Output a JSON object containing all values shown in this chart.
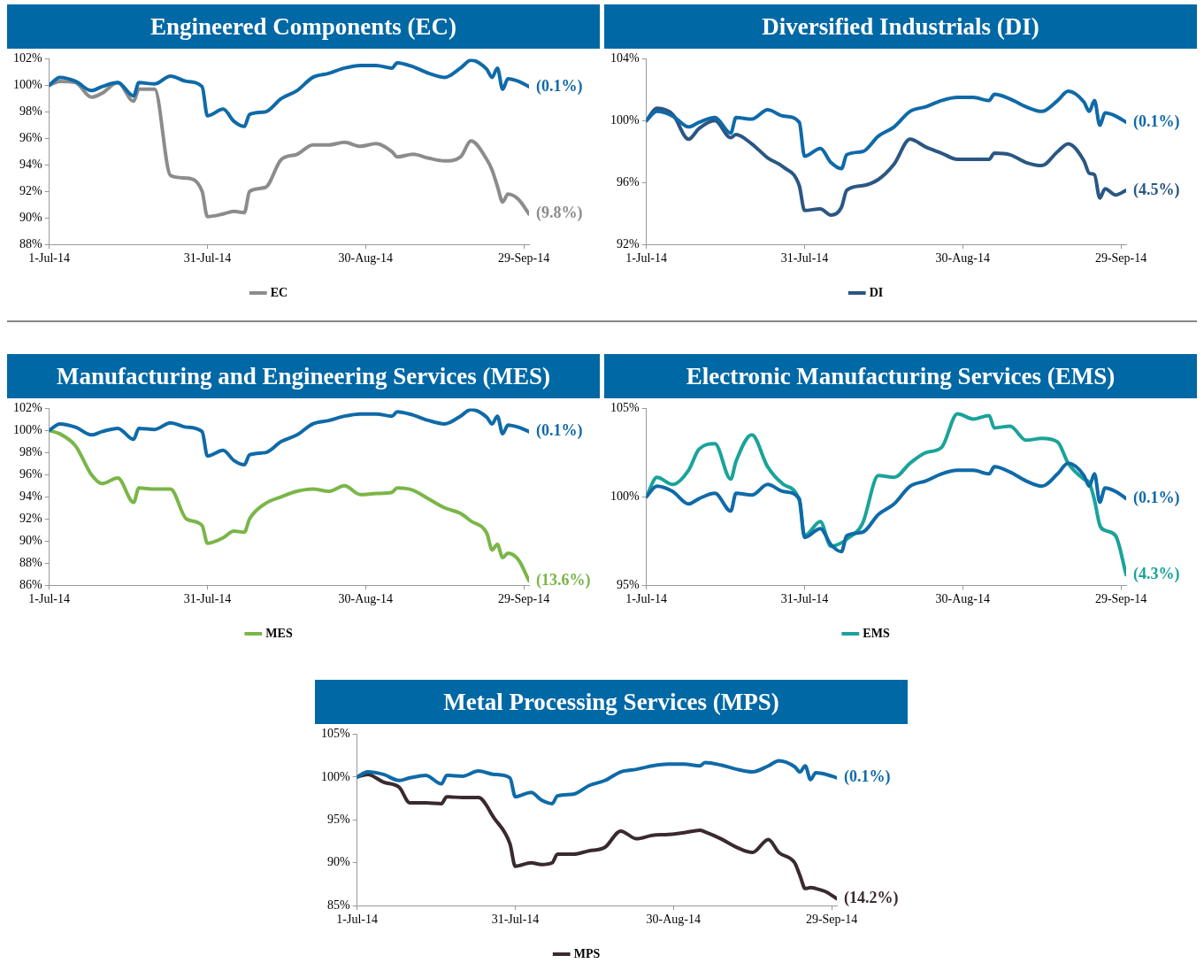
{
  "chart_data": [
    {
      "type": "line",
      "title": "Engineered Components (EC)",
      "legend": "bottom",
      "grid": false,
      "x": [
        "2014-07-01",
        "2014-07-03",
        "2014-07-06",
        "2014-07-09",
        "2014-07-11",
        "2014-07-14",
        "2014-07-17",
        "2014-07-18",
        "2014-07-21",
        "2014-07-24",
        "2014-07-27",
        "2014-07-30",
        "2014-07-31",
        "2014-08-03",
        "2014-08-05",
        "2014-08-07",
        "2014-08-08",
        "2014-08-11",
        "2014-08-14",
        "2014-08-17",
        "2014-08-20",
        "2014-08-23",
        "2014-08-26",
        "2014-08-29",
        "2014-09-01",
        "2014-09-04",
        "2014-09-05",
        "2014-09-08",
        "2014-09-11",
        "2014-09-14",
        "2014-09-17",
        "2014-09-19",
        "2014-09-22",
        "2014-09-23",
        "2014-09-24",
        "2014-09-25",
        "2014-09-26",
        "2014-09-28",
        "2014-09-30"
      ],
      "series": [
        {
          "color": "#0f6aa8",
          "values": [
            100,
            100.6,
            100.3,
            99.6,
            99.9,
            100.2,
            99.2,
            100.2,
            100.1,
            100.7,
            100.3,
            99.9,
            97.7,
            98.2,
            97.3,
            96.9,
            97.8,
            98.0,
            99.0,
            99.6,
            100.6,
            100.9,
            101.3,
            101.5,
            101.5,
            101.3,
            101.7,
            101.4,
            100.9,
            100.6,
            101.3,
            101.9,
            101.2,
            100.6,
            101.3,
            99.7,
            100.5,
            100.3,
            99.9
          ]
        },
        {
          "name": "EC",
          "color": "#8c8c8c",
          "values": [
            100,
            100.3,
            100.2,
            99.1,
            99.4,
            100.2,
            98.8,
            99.7,
            99.7,
            93.2,
            93.0,
            92.0,
            90.1,
            90.3,
            90.5,
            90.4,
            92.0,
            92.3,
            94.4,
            94.8,
            95.5,
            95.5,
            95.7,
            95.4,
            95.6,
            95.0,
            94.6,
            94.8,
            94.5,
            94.3,
            94.6,
            95.8,
            94.4,
            93.6,
            92.4,
            91.2,
            91.8,
            91.4,
            90.3
          ]
        }
      ],
      "xlim": [
        "2014-07-01",
        "2014-09-30"
      ],
      "xticks": [
        {
          "value": "2014-07-01",
          "label": "1-Jul-14"
        },
        {
          "value": "2014-07-31",
          "label": "31-Jul-14"
        },
        {
          "value": "2014-08-30",
          "label": "30-Aug-14"
        },
        {
          "value": "2014-09-29",
          "label": "29-Sep-14"
        }
      ],
      "ylim": [
        88,
        102
      ],
      "yticks": [
        {
          "value": 88,
          "label": "88%"
        },
        {
          "value": 90,
          "label": "90%"
        },
        {
          "value": 92,
          "label": "92%"
        },
        {
          "value": 94,
          "label": "94%"
        },
        {
          "value": 96,
          "label": "96%"
        },
        {
          "value": 98,
          "label": "98%"
        },
        {
          "value": 100,
          "label": "100%"
        },
        {
          "value": 102,
          "label": "102%"
        }
      ],
      "annotations": [
        {
          "text": "(0.1%)",
          "x": "2014-09-30",
          "y": 99.9
        },
        {
          "text": "(9.8%)",
          "x": "2014-09-30",
          "y": 90.3
        }
      ]
    },
    {
      "type": "line",
      "title": "Diversified Industrials (DI)",
      "legend": "bottom",
      "grid": false,
      "x": [
        "2014-07-01",
        "2014-07-03",
        "2014-07-06",
        "2014-07-09",
        "2014-07-11",
        "2014-07-14",
        "2014-07-17",
        "2014-07-18",
        "2014-07-21",
        "2014-07-24",
        "2014-07-27",
        "2014-07-30",
        "2014-07-31",
        "2014-08-03",
        "2014-08-05",
        "2014-08-07",
        "2014-08-08",
        "2014-08-11",
        "2014-08-14",
        "2014-08-17",
        "2014-08-20",
        "2014-08-23",
        "2014-08-26",
        "2014-08-29",
        "2014-09-01",
        "2014-09-04",
        "2014-09-05",
        "2014-09-08",
        "2014-09-11",
        "2014-09-14",
        "2014-09-17",
        "2014-09-19",
        "2014-09-22",
        "2014-09-23",
        "2014-09-24",
        "2014-09-25",
        "2014-09-26",
        "2014-09-28",
        "2014-09-30"
      ],
      "series": [
        {
          "color": "#0f6aa8",
          "values": [
            100,
            100.6,
            100.3,
            99.6,
            99.9,
            100.2,
            99.2,
            100.2,
            100.1,
            100.7,
            100.3,
            99.9,
            97.7,
            98.2,
            97.3,
            96.9,
            97.8,
            98.0,
            99.0,
            99.6,
            100.6,
            100.9,
            101.3,
            101.5,
            101.5,
            101.3,
            101.7,
            101.4,
            100.9,
            100.6,
            101.3,
            101.9,
            101.2,
            100.6,
            101.3,
            99.7,
            100.5,
            100.3,
            99.9
          ]
        },
        {
          "name": "DI",
          "color": "#2a5783",
          "values": [
            100,
            100.8,
            100.4,
            98.8,
            99.5,
            100.0,
            98.9,
            99.1,
            98.5,
            97.6,
            97.0,
            95.8,
            94.2,
            94.3,
            93.9,
            94.4,
            95.5,
            95.8,
            96.2,
            97.2,
            98.8,
            98.3,
            97.9,
            97.5,
            97.5,
            97.5,
            97.9,
            97.8,
            97.3,
            97.1,
            98.0,
            98.5,
            97.4,
            96.6,
            96.5,
            95.0,
            95.6,
            95.2,
            95.5
          ]
        }
      ],
      "xlim": [
        "2014-07-01",
        "2014-09-30"
      ],
      "xticks": [
        {
          "value": "2014-07-01",
          "label": "1-Jul-14"
        },
        {
          "value": "2014-07-31",
          "label": "31-Jul-14"
        },
        {
          "value": "2014-08-30",
          "label": "30-Aug-14"
        },
        {
          "value": "2014-09-29",
          "label": "29-Sep-14"
        }
      ],
      "ylim": [
        92,
        104
      ],
      "yticks": [
        {
          "value": 92,
          "label": "92%"
        },
        {
          "value": 96,
          "label": "96%"
        },
        {
          "value": 100,
          "label": "100%"
        },
        {
          "value": 104,
          "label": "104%"
        }
      ],
      "annotations": [
        {
          "text": "(0.1%)",
          "x": "2014-09-30",
          "y": 99.9
        },
        {
          "text": "(4.5%)",
          "x": "2014-09-30",
          "y": 95.5
        }
      ]
    },
    {
      "type": "line",
      "title": "Manufacturing and Engineering Services (MES)",
      "legend": "bottom",
      "grid": false,
      "x": [
        "2014-07-01",
        "2014-07-03",
        "2014-07-06",
        "2014-07-09",
        "2014-07-11",
        "2014-07-14",
        "2014-07-17",
        "2014-07-18",
        "2014-07-21",
        "2014-07-24",
        "2014-07-27",
        "2014-07-30",
        "2014-07-31",
        "2014-08-03",
        "2014-08-05",
        "2014-08-07",
        "2014-08-08",
        "2014-08-11",
        "2014-08-14",
        "2014-08-17",
        "2014-08-20",
        "2014-08-23",
        "2014-08-26",
        "2014-08-29",
        "2014-09-01",
        "2014-09-04",
        "2014-09-05",
        "2014-09-08",
        "2014-09-11",
        "2014-09-14",
        "2014-09-17",
        "2014-09-19",
        "2014-09-22",
        "2014-09-23",
        "2014-09-24",
        "2014-09-25",
        "2014-09-26",
        "2014-09-28",
        "2014-09-30"
      ],
      "series": [
        {
          "color": "#0f6aa8",
          "values": [
            100,
            100.6,
            100.3,
            99.6,
            99.9,
            100.2,
            99.2,
            100.2,
            100.1,
            100.7,
            100.3,
            99.9,
            97.7,
            98.2,
            97.3,
            96.9,
            97.8,
            98.0,
            99.0,
            99.6,
            100.6,
            100.9,
            101.3,
            101.5,
            101.5,
            101.3,
            101.7,
            101.4,
            100.9,
            100.6,
            101.3,
            101.9,
            101.2,
            100.6,
            101.3,
            99.7,
            100.5,
            100.3,
            99.9
          ]
        },
        {
          "name": "MES",
          "color": "#7ab648",
          "values": [
            100,
            99.7,
            98.6,
            96.0,
            95.2,
            95.7,
            93.5,
            94.8,
            94.7,
            94.7,
            92.0,
            91.4,
            89.8,
            90.3,
            90.9,
            90.8,
            92.0,
            93.4,
            94.0,
            94.5,
            94.7,
            94.5,
            95.0,
            94.2,
            94.3,
            94.4,
            94.8,
            94.6,
            93.8,
            93.0,
            92.5,
            91.8,
            90.7,
            89.2,
            89.7,
            88.5,
            88.9,
            88.3,
            86.4
          ]
        }
      ],
      "xlim": [
        "2014-07-01",
        "2014-09-30"
      ],
      "xticks": [
        {
          "value": "2014-07-01",
          "label": "1-Jul-14"
        },
        {
          "value": "2014-07-31",
          "label": "31-Jul-14"
        },
        {
          "value": "2014-08-30",
          "label": "30-Aug-14"
        },
        {
          "value": "2014-09-29",
          "label": "29-Sep-14"
        }
      ],
      "ylim": [
        86,
        102
      ],
      "yticks": [
        {
          "value": 86,
          "label": "86%"
        },
        {
          "value": 88,
          "label": "88%"
        },
        {
          "value": 90,
          "label": "90%"
        },
        {
          "value": 92,
          "label": "92%"
        },
        {
          "value": 94,
          "label": "94%"
        },
        {
          "value": 96,
          "label": "96%"
        },
        {
          "value": 98,
          "label": "98%"
        },
        {
          "value": 100,
          "label": "100%"
        },
        {
          "value": 102,
          "label": "102%"
        }
      ],
      "annotations": [
        {
          "text": "(0.1%)",
          "x": "2014-09-30",
          "y": 99.9
        },
        {
          "text": "(13.6%)",
          "x": "2014-09-30",
          "y": 86.4
        }
      ]
    },
    {
      "type": "line",
      "title": "Electronic Manufacturing Services (EMS)",
      "legend": "bottom",
      "grid": false,
      "x": [
        "2014-07-01",
        "2014-07-03",
        "2014-07-06",
        "2014-07-09",
        "2014-07-11",
        "2014-07-14",
        "2014-07-17",
        "2014-07-18",
        "2014-07-21",
        "2014-07-24",
        "2014-07-27",
        "2014-07-30",
        "2014-07-31",
        "2014-08-03",
        "2014-08-05",
        "2014-08-07",
        "2014-08-08",
        "2014-08-11",
        "2014-08-14",
        "2014-08-17",
        "2014-08-20",
        "2014-08-23",
        "2014-08-26",
        "2014-08-29",
        "2014-09-01",
        "2014-09-04",
        "2014-09-05",
        "2014-09-08",
        "2014-09-11",
        "2014-09-14",
        "2014-09-17",
        "2014-09-19",
        "2014-09-22",
        "2014-09-23",
        "2014-09-24",
        "2014-09-25",
        "2014-09-26",
        "2014-09-28",
        "2014-09-30"
      ],
      "series": [
        {
          "color": "#0f6aa8",
          "values": [
            100,
            100.6,
            100.3,
            99.6,
            99.9,
            100.2,
            99.2,
            100.2,
            100.1,
            100.7,
            100.3,
            99.9,
            97.7,
            98.2,
            97.3,
            96.9,
            97.8,
            98.0,
            99.0,
            99.6,
            100.6,
            100.9,
            101.3,
            101.5,
            101.5,
            101.3,
            101.7,
            101.4,
            100.9,
            100.6,
            101.3,
            101.9,
            101.2,
            100.6,
            101.3,
            99.7,
            100.5,
            100.3,
            99.9
          ]
        },
        {
          "name": "EMS",
          "color": "#1aa39a",
          "values": [
            100,
            101.1,
            100.7,
            101.5,
            102.7,
            103.0,
            101.0,
            102.0,
            103.5,
            101.7,
            100.7,
            99.8,
            97.8,
            98.6,
            97.2,
            97.4,
            97.6,
            98.5,
            101.2,
            101.1,
            101.9,
            102.5,
            102.8,
            104.7,
            104.4,
            104.6,
            103.9,
            104.0,
            103.2,
            103.3,
            103.1,
            101.9,
            101.0,
            100.8,
            99.8,
            98.4,
            98.1,
            97.8,
            95.6
          ]
        }
      ],
      "xlim": [
        "2014-07-01",
        "2014-09-30"
      ],
      "xticks": [
        {
          "value": "2014-07-01",
          "label": "1-Jul-14"
        },
        {
          "value": "2014-07-31",
          "label": "31-Jul-14"
        },
        {
          "value": "2014-08-30",
          "label": "30-Aug-14"
        },
        {
          "value": "2014-09-29",
          "label": "29-Sep-14"
        }
      ],
      "ylim": [
        95,
        105
      ],
      "yticks": [
        {
          "value": 95,
          "label": "95%"
        },
        {
          "value": 100,
          "label": "100%"
        },
        {
          "value": 105,
          "label": "105%"
        }
      ],
      "annotations": [
        {
          "text": "(0.1%)",
          "x": "2014-09-30",
          "y": 99.9
        },
        {
          "text": "(4.3%)",
          "x": "2014-09-30",
          "y": 95.6
        }
      ]
    },
    {
      "type": "line",
      "title": "Metal Processing Services (MPS)",
      "legend": "bottom",
      "grid": false,
      "x": [
        "2014-07-01",
        "2014-07-03",
        "2014-07-06",
        "2014-07-09",
        "2014-07-11",
        "2014-07-14",
        "2014-07-17",
        "2014-07-18",
        "2014-07-21",
        "2014-07-24",
        "2014-07-27",
        "2014-07-30",
        "2014-07-31",
        "2014-08-03",
        "2014-08-05",
        "2014-08-07",
        "2014-08-08",
        "2014-08-11",
        "2014-08-14",
        "2014-08-17",
        "2014-08-20",
        "2014-08-23",
        "2014-08-26",
        "2014-08-29",
        "2014-09-01",
        "2014-09-04",
        "2014-09-05",
        "2014-09-08",
        "2014-09-11",
        "2014-09-14",
        "2014-09-17",
        "2014-09-19",
        "2014-09-22",
        "2014-09-23",
        "2014-09-24",
        "2014-09-25",
        "2014-09-26",
        "2014-09-28",
        "2014-09-30"
      ],
      "series": [
        {
          "color": "#0f6aa8",
          "values": [
            100,
            100.6,
            100.3,
            99.6,
            99.9,
            100.2,
            99.2,
            100.2,
            100.1,
            100.7,
            100.3,
            99.9,
            97.7,
            98.2,
            97.3,
            96.9,
            97.8,
            98.0,
            99.0,
            99.6,
            100.6,
            100.9,
            101.3,
            101.5,
            101.5,
            101.3,
            101.7,
            101.4,
            100.9,
            100.6,
            101.3,
            101.9,
            101.2,
            100.6,
            101.3,
            99.7,
            100.5,
            100.3,
            99.9
          ]
        },
        {
          "name": "MPS",
          "color": "#3a2a30",
          "values": [
            100,
            100.3,
            99.4,
            98.8,
            97.0,
            97.0,
            96.9,
            97.7,
            97.6,
            97.6,
            95.2,
            92.2,
            89.6,
            90.0,
            89.8,
            90.0,
            91.0,
            91.0,
            91.4,
            91.8,
            93.7,
            92.8,
            93.2,
            93.3,
            93.5,
            93.8,
            93.6,
            92.8,
            91.8,
            91.2,
            92.7,
            91.2,
            90.0,
            88.5,
            87.0,
            87.1,
            87.0,
            86.6,
            85.8
          ]
        }
      ],
      "xlim": [
        "2014-07-01",
        "2014-09-30"
      ],
      "xticks": [
        {
          "value": "2014-07-01",
          "label": "1-Jul-14"
        },
        {
          "value": "2014-07-31",
          "label": "31-Jul-14"
        },
        {
          "value": "2014-08-30",
          "label": "30-Aug-14"
        },
        {
          "value": "2014-09-29",
          "label": "29-Sep-14"
        }
      ],
      "ylim": [
        85,
        105
      ],
      "yticks": [
        {
          "value": 85,
          "label": "85%"
        },
        {
          "value": 90,
          "label": "90%"
        },
        {
          "value": 95,
          "label": "95%"
        },
        {
          "value": 100,
          "label": "100%"
        },
        {
          "value": 105,
          "label": "105%"
        }
      ],
      "annotations": [
        {
          "text": "(0.1%)",
          "x": "2014-09-30",
          "y": 99.9
        },
        {
          "text": "(14.2%)",
          "x": "2014-09-30",
          "y": 85.8
        }
      ]
    }
  ]
}
